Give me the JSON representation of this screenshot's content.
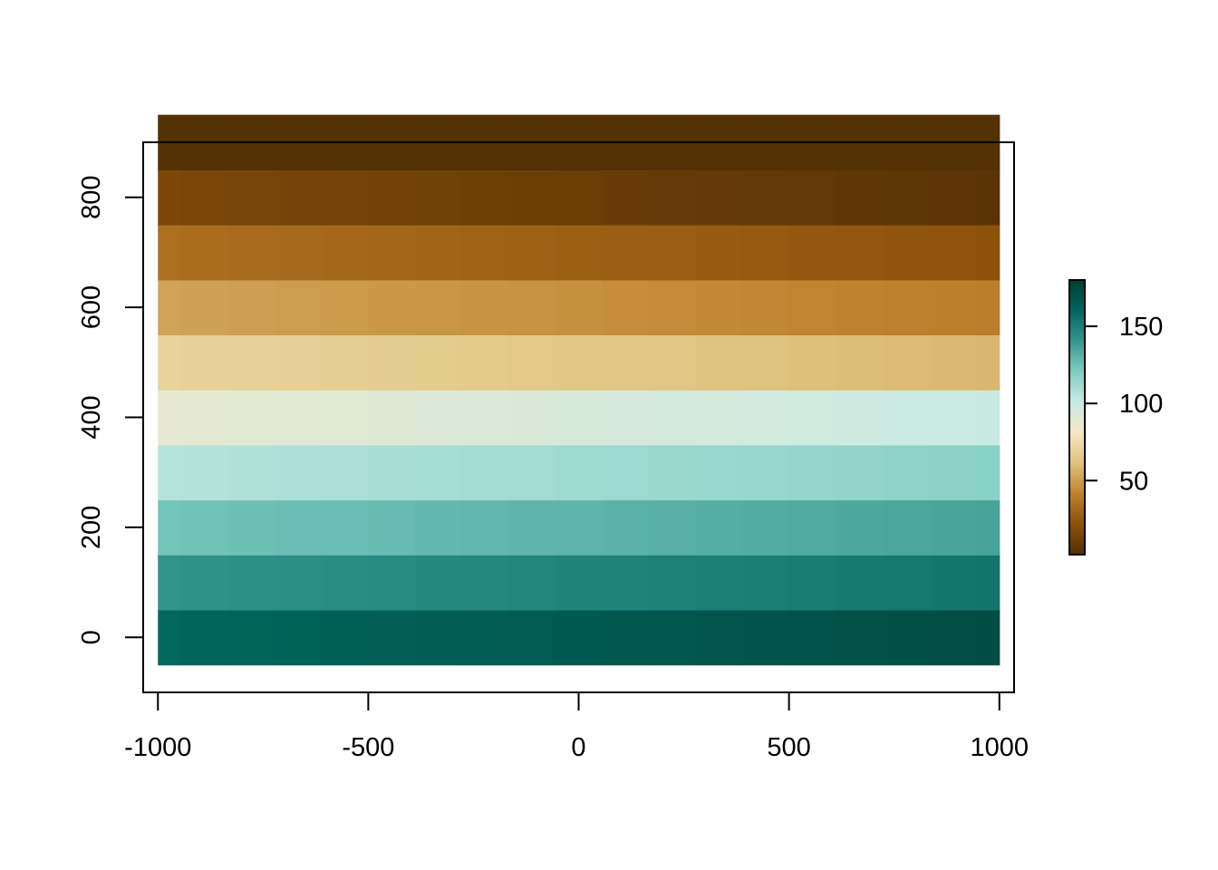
{
  "chart_data": {
    "type": "heatmap",
    "title": "",
    "xlabel": "",
    "ylabel": "",
    "x_centers": [
      -1000,
      -889,
      -778,
      -667,
      -556,
      -444,
      -333,
      -222,
      -111,
      0,
      111,
      222,
      333,
      444,
      556,
      667,
      778,
      889,
      1000
    ],
    "y_centers": [
      0,
      100,
      200,
      300,
      400,
      500,
      600,
      700,
      800,
      900
    ],
    "xlim": [
      -1035,
      1035
    ],
    "ylim": [
      -100,
      900
    ],
    "x_ticks": [
      -1000,
      -500,
      0,
      500,
      1000
    ],
    "x_tick_labels": [
      "-1000",
      "-500",
      "0",
      "500",
      "1000"
    ],
    "y_ticks": [
      0,
      200,
      400,
      600,
      800
    ],
    "y_tick_labels": [
      "0",
      "200",
      "400",
      "600",
      "800"
    ],
    "value_model": {
      "row_base": [
        160,
        142,
        124,
        106,
        88,
        70,
        52,
        34,
        16,
        2
      ],
      "x_slope_per_1000": 6
    },
    "colorbar": {
      "range": [
        2,
        180
      ],
      "ticks": [
        50,
        100,
        150
      ],
      "tick_labels": [
        "50",
        "100",
        "150"
      ],
      "palette": [
        "#543005",
        "#8C510A",
        "#BF812D",
        "#DFC27D",
        "#F6E8C3",
        "#C7EAE5",
        "#80CDC1",
        "#35978F",
        "#01665E",
        "#003C30"
      ]
    },
    "grid": false,
    "legend": "right"
  }
}
